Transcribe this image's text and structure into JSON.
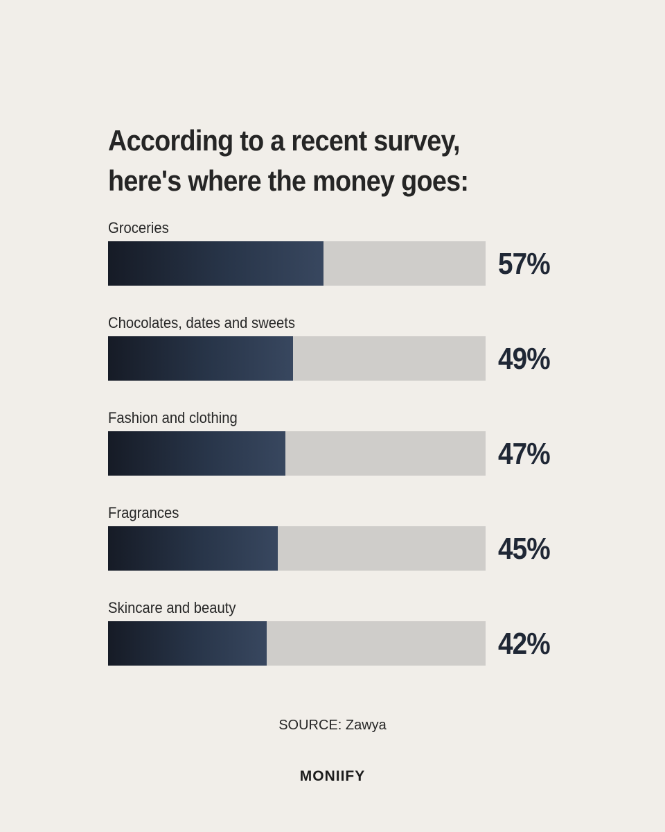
{
  "title_lines": [
    "According to a recent survey,",
    "here's where the money goes:"
  ],
  "chart_data": {
    "type": "bar",
    "orientation": "horizontal",
    "title": "According to a recent survey, here's where the money goes:",
    "categories": [
      "Groceries",
      "Chocolates, dates and sweets",
      "Fashion and clothing",
      "Fragrances",
      "Skincare and beauty"
    ],
    "values": [
      57,
      49,
      47,
      45,
      42
    ],
    "value_labels": [
      "57%",
      "49%",
      "47%",
      "45%",
      "42%"
    ],
    "xlim": [
      0,
      100
    ],
    "unit": "%",
    "grid": false,
    "legend": "none"
  },
  "source": "SOURCE: Zawya",
  "brand": "MONIIFY",
  "colors": {
    "background": "#f1eee9",
    "track": "#cfcdca",
    "fill_start": "#161b26",
    "fill_end": "#38475f",
    "value_text": "#1f2735"
  }
}
